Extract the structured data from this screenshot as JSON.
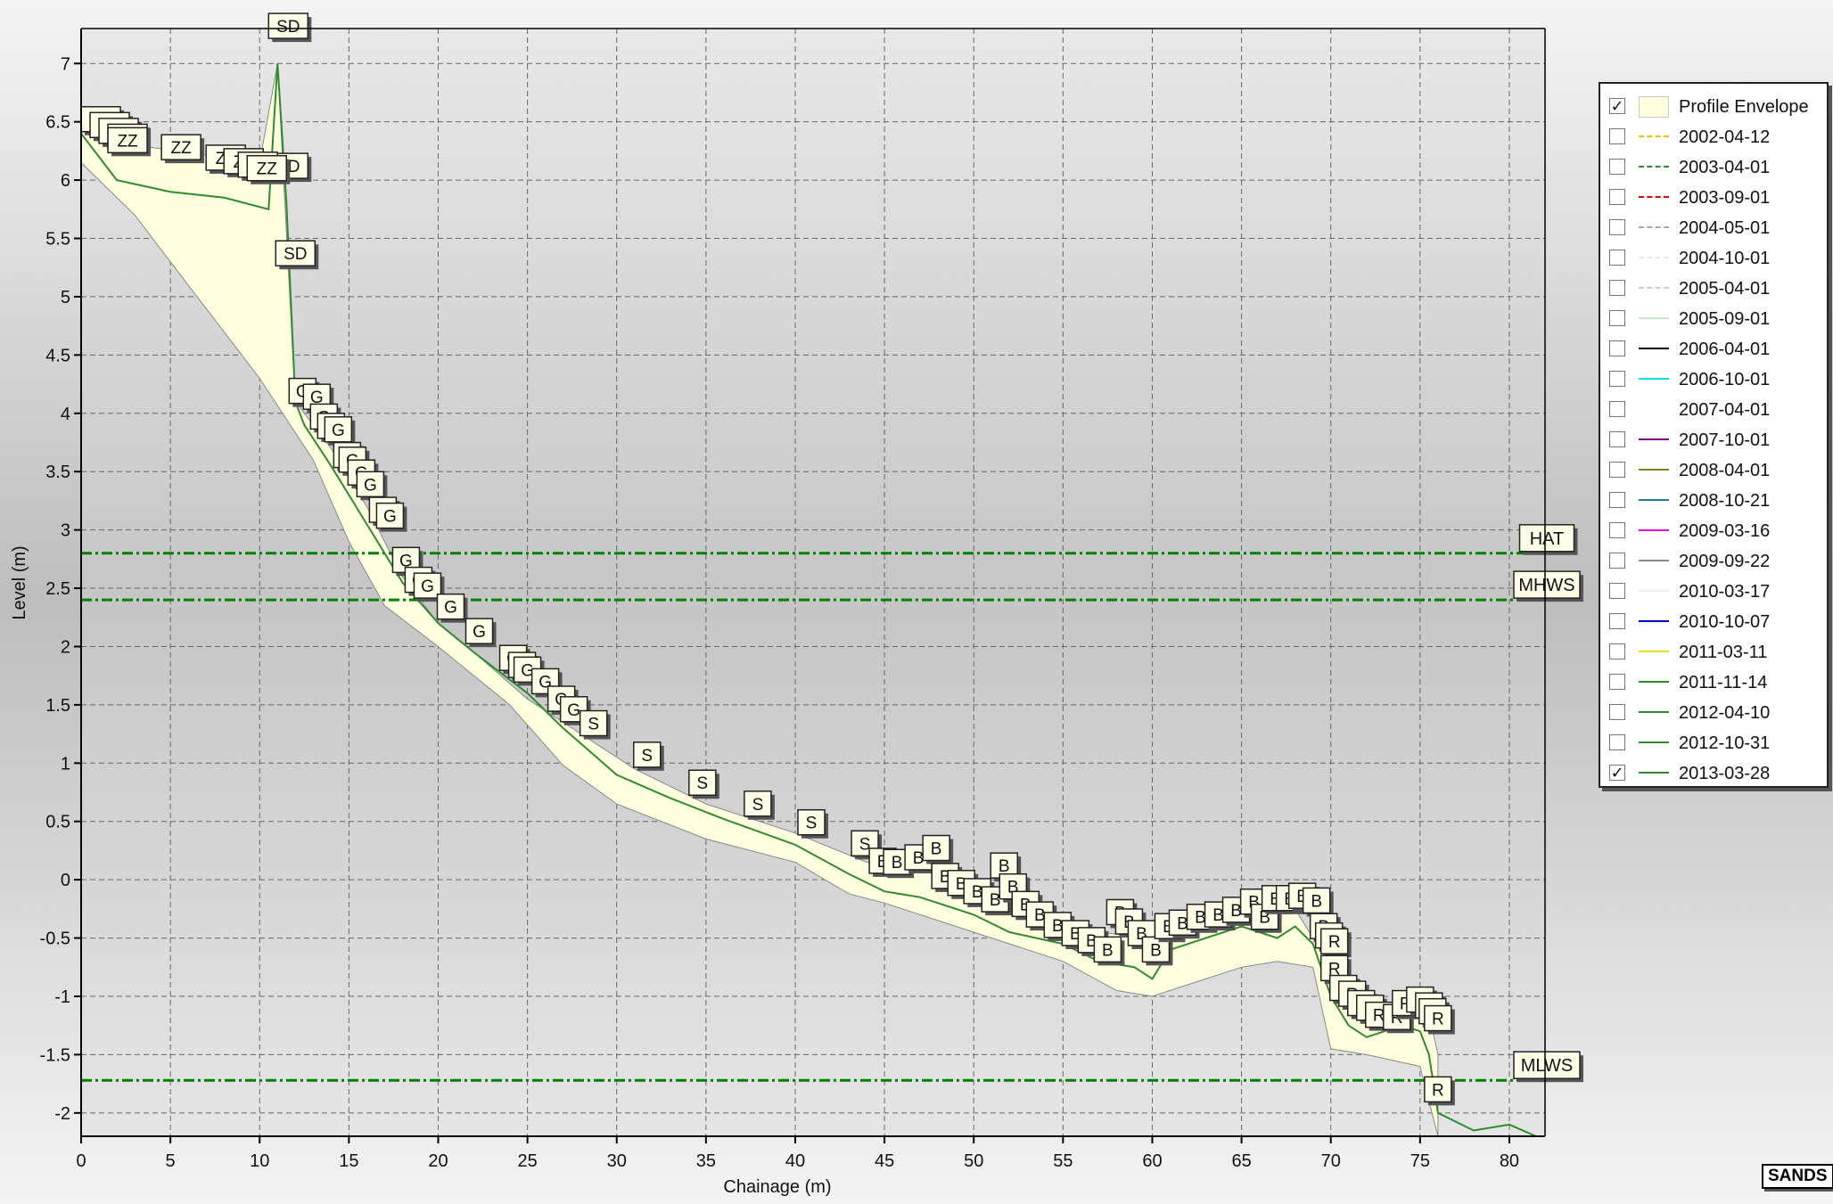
{
  "chart_data": {
    "type": "line",
    "xlabel": "Chainage (m)",
    "ylabel": "Level (m)",
    "xlim": [
      0,
      82
    ],
    "ylim": [
      -2.2,
      7.3
    ],
    "xticks": [
      0,
      5,
      10,
      15,
      20,
      25,
      30,
      35,
      40,
      45,
      50,
      55,
      60,
      65,
      70,
      75,
      80
    ],
    "yticks": [
      -2,
      -1.5,
      -1,
      -0.5,
      0,
      0.5,
      1,
      1.5,
      2,
      2.5,
      3,
      3.5,
      4,
      4.5,
      5,
      5.5,
      6,
      6.5,
      7
    ],
    "ytick_labels": [
      "-2",
      "-1.5",
      "-1",
      "-0.5",
      "0",
      "0.5",
      "1",
      "1.5",
      "2",
      "2.5",
      "3",
      "3.5",
      "4",
      "4.5",
      "5",
      "5.5",
      "6",
      "6.5",
      "7"
    ],
    "grid": true,
    "legend_position": "right",
    "envelope": {
      "name": "Profile Envelope",
      "upper": [
        [
          0,
          6.45
        ],
        [
          3,
          6.3
        ],
        [
          10,
          6.15
        ],
        [
          11,
          7.0
        ],
        [
          12,
          4.1
        ],
        [
          14,
          3.7
        ],
        [
          16,
          3.2
        ],
        [
          18,
          2.6
        ],
        [
          20,
          2.2
        ],
        [
          22,
          1.95
        ],
        [
          25,
          1.55
        ],
        [
          28,
          1.25
        ],
        [
          31,
          0.95
        ],
        [
          35,
          0.65
        ],
        [
          40,
          0.4
        ],
        [
          44,
          0.15
        ],
        [
          48,
          0.05
        ],
        [
          51,
          -0.05
        ],
        [
          54,
          -0.4
        ],
        [
          57,
          -0.45
        ],
        [
          60,
          -0.5
        ],
        [
          63,
          -0.4
        ],
        [
          66,
          -0.25
        ],
        [
          68,
          -0.25
        ],
        [
          70,
          -0.75
        ],
        [
          72,
          -1.15
        ],
        [
          74,
          -1.1
        ],
        [
          75.5,
          -1.15
        ],
        [
          76,
          -1.5
        ]
      ],
      "lower": [
        [
          76,
          -2.2
        ],
        [
          75,
          -1.6
        ],
        [
          73.5,
          -1.55
        ],
        [
          72,
          -1.5
        ],
        [
          70,
          -1.45
        ],
        [
          69,
          -0.75
        ],
        [
          67,
          -0.7
        ],
        [
          65,
          -0.75
        ],
        [
          63,
          -0.85
        ],
        [
          61,
          -0.95
        ],
        [
          60,
          -1.0
        ],
        [
          58,
          -0.95
        ],
        [
          55,
          -0.7
        ],
        [
          50,
          -0.45
        ],
        [
          45,
          -0.2
        ],
        [
          43,
          -0.12
        ],
        [
          40,
          0.15
        ],
        [
          35,
          0.35
        ],
        [
          30,
          0.65
        ],
        [
          27,
          0.98
        ],
        [
          24,
          1.5
        ],
        [
          20,
          2.0
        ],
        [
          17,
          2.35
        ],
        [
          15,
          2.9
        ],
        [
          13,
          3.6
        ],
        [
          10,
          4.3
        ],
        [
          6,
          5.1
        ],
        [
          3,
          5.7
        ],
        [
          0,
          6.15
        ]
      ]
    },
    "series": [
      {
        "name": "2013-03-28",
        "color": "#2e8b2e",
        "x": [
          0,
          2,
          5,
          8,
          10.5,
          11,
          11.5,
          12,
          12.5,
          14,
          16,
          18,
          20,
          22,
          25,
          27,
          30,
          33,
          36,
          40,
          43,
          45,
          47,
          50,
          52,
          55,
          57,
          59,
          60,
          61,
          63,
          65,
          66,
          67,
          68,
          69,
          70,
          71,
          72,
          73,
          74,
          75,
          75.5,
          76,
          78,
          80,
          81.5
        ],
        "y": [
          6.4,
          6.0,
          5.9,
          5.85,
          5.75,
          7.0,
          5.8,
          4.1,
          3.9,
          3.55,
          3.05,
          2.55,
          2.2,
          1.95,
          1.6,
          1.3,
          0.9,
          0.7,
          0.52,
          0.3,
          0.05,
          -0.1,
          -0.15,
          -0.3,
          -0.45,
          -0.55,
          -0.7,
          -0.75,
          -0.85,
          -0.6,
          -0.5,
          -0.4,
          -0.45,
          -0.5,
          -0.4,
          -0.55,
          -1.0,
          -1.25,
          -1.35,
          -1.3,
          -1.25,
          -1.3,
          -1.5,
          -2.0,
          -2.15,
          -2.1,
          -2.2
        ]
      }
    ],
    "reference_lines": [
      {
        "name": "HAT",
        "y": 2.8
      },
      {
        "name": "MHWS",
        "y": 2.4
      },
      {
        "name": "MLWS",
        "y": -1.72
      }
    ],
    "annotations": [
      {
        "text": "SD",
        "x": 11.0,
        "y": 7.2
      },
      {
        "text": "SD",
        "x": 11.0,
        "y": 6.0
      },
      {
        "text": "SD",
        "x": 11.4,
        "y": 5.25
      },
      {
        "text": "ZZ",
        "x": 0.5,
        "y": 6.4
      },
      {
        "text": "ZZ",
        "x": 1.0,
        "y": 6.35
      },
      {
        "text": "ZZ",
        "x": 1.5,
        "y": 6.3
      },
      {
        "text": "ZZ",
        "x": 2.0,
        "y": 6.25
      },
      {
        "text": "ZZ",
        "x": 2.0,
        "y": 6.22
      },
      {
        "text": "ZZ",
        "x": 5.0,
        "y": 6.16
      },
      {
        "text": "ZZ",
        "x": 7.5,
        "y": 6.07
      },
      {
        "text": "ZZ",
        "x": 8.5,
        "y": 6.04
      },
      {
        "text": "ZZ",
        "x": 9.3,
        "y": 6.01
      },
      {
        "text": "ZZ",
        "x": 9.8,
        "y": 5.98
      },
      {
        "text": "G",
        "x": 11.8,
        "y": 4.07
      },
      {
        "text": "G",
        "x": 12.6,
        "y": 4.02
      },
      {
        "text": "G",
        "x": 13.0,
        "y": 3.85
      },
      {
        "text": "G",
        "x": 13.4,
        "y": 3.77
      },
      {
        "text": "G",
        "x": 13.8,
        "y": 3.74
      },
      {
        "text": "G",
        "x": 14.3,
        "y": 3.52
      },
      {
        "text": "G",
        "x": 14.6,
        "y": 3.48
      },
      {
        "text": "G",
        "x": 15.1,
        "y": 3.37
      },
      {
        "text": "G",
        "x": 15.6,
        "y": 3.27
      },
      {
        "text": "G",
        "x": 16.3,
        "y": 3.05
      },
      {
        "text": "G",
        "x": 16.7,
        "y": 3.0
      },
      {
        "text": "G",
        "x": 17.6,
        "y": 2.62
      },
      {
        "text": "G",
        "x": 18.3,
        "y": 2.45
      },
      {
        "text": "G",
        "x": 18.8,
        "y": 2.4
      },
      {
        "text": "G",
        "x": 20.1,
        "y": 2.22
      },
      {
        "text": "G",
        "x": 21.7,
        "y": 2.01
      },
      {
        "text": "G",
        "x": 23.6,
        "y": 1.78
      },
      {
        "text": "G",
        "x": 24.1,
        "y": 1.72
      },
      {
        "text": "G",
        "x": 24.4,
        "y": 1.68
      },
      {
        "text": "G",
        "x": 25.4,
        "y": 1.58
      },
      {
        "text": "G",
        "x": 26.3,
        "y": 1.43
      },
      {
        "text": "G",
        "x": 27.0,
        "y": 1.34
      },
      {
        "text": "S",
        "x": 28.1,
        "y": 1.22
      },
      {
        "text": "S",
        "x": 31.1,
        "y": 0.95
      },
      {
        "text": "S",
        "x": 34.2,
        "y": 0.71
      },
      {
        "text": "S",
        "x": 37.3,
        "y": 0.53
      },
      {
        "text": "S",
        "x": 40.3,
        "y": 0.37
      },
      {
        "text": "S",
        "x": 43.3,
        "y": 0.19
      },
      {
        "text": "B",
        "x": 44.3,
        "y": 0.04
      },
      {
        "text": "B",
        "x": 45.1,
        "y": 0.03
      },
      {
        "text": "B",
        "x": 46.3,
        "y": 0.07
      },
      {
        "text": "B",
        "x": 47.3,
        "y": 0.15
      },
      {
        "text": "B",
        "x": 47.8,
        "y": -0.09
      },
      {
        "text": "B",
        "x": 48.7,
        "y": -0.15
      },
      {
        "text": "B",
        "x": 49.6,
        "y": -0.22
      },
      {
        "text": "B",
        "x": 50.6,
        "y": -0.29
      },
      {
        "text": "B",
        "x": 51.1,
        "y": 0.0
      },
      {
        "text": "B",
        "x": 51.6,
        "y": -0.18
      },
      {
        "text": "B",
        "x": 52.3,
        "y": -0.33
      },
      {
        "text": "B",
        "x": 53.1,
        "y": -0.42
      },
      {
        "text": "B",
        "x": 54.1,
        "y": -0.51
      },
      {
        "text": "B",
        "x": 55.1,
        "y": -0.58
      },
      {
        "text": "B",
        "x": 56.0,
        "y": -0.64
      },
      {
        "text": "B",
        "x": 56.9,
        "y": -0.72
      },
      {
        "text": "B",
        "x": 57.6,
        "y": -0.4
      },
      {
        "text": "B",
        "x": 58.1,
        "y": -0.48
      },
      {
        "text": "B",
        "x": 58.8,
        "y": -0.58
      },
      {
        "text": "B",
        "x": 59.6,
        "y": -0.72
      },
      {
        "text": "B",
        "x": 60.3,
        "y": -0.52
      },
      {
        "text": "B",
        "x": 61.1,
        "y": -0.49
      },
      {
        "text": "B",
        "x": 62.1,
        "y": -0.44
      },
      {
        "text": "B",
        "x": 63.1,
        "y": -0.42
      },
      {
        "text": "B",
        "x": 64.1,
        "y": -0.38
      },
      {
        "text": "B",
        "x": 65.1,
        "y": -0.31
      },
      {
        "text": "B",
        "x": 65.7,
        "y": -0.44
      },
      {
        "text": "B",
        "x": 66.3,
        "y": -0.28
      },
      {
        "text": "B",
        "x": 67.1,
        "y": -0.28
      },
      {
        "text": "B",
        "x": 67.8,
        "y": -0.26
      },
      {
        "text": "B",
        "x": 68.6,
        "y": -0.3
      },
      {
        "text": "B",
        "x": 69.0,
        "y": -0.52
      },
      {
        "text": "R",
        "x": 69.3,
        "y": -0.6
      },
      {
        "text": "R",
        "x": 69.6,
        "y": -0.65
      },
      {
        "text": "R",
        "x": 69.6,
        "y": -0.88
      },
      {
        "text": "R",
        "x": 70.1,
        "y": -1.05
      },
      {
        "text": "R",
        "x": 70.6,
        "y": -1.1
      },
      {
        "text": "R",
        "x": 71.1,
        "y": -1.18
      },
      {
        "text": "R",
        "x": 71.6,
        "y": -1.22
      },
      {
        "text": "R",
        "x": 72.1,
        "y": -1.28
      },
      {
        "text": "R",
        "x": 73.1,
        "y": -1.3
      },
      {
        "text": "R",
        "x": 73.6,
        "y": -1.18
      },
      {
        "text": "R",
        "x": 74.4,
        "y": -1.15
      },
      {
        "text": "R",
        "x": 74.9,
        "y": -1.2
      },
      {
        "text": "R",
        "x": 75.1,
        "y": -1.25
      },
      {
        "text": "R",
        "x": 75.4,
        "y": -1.31
      },
      {
        "text": "R",
        "x": 75.4,
        "y": -1.92
      }
    ],
    "legend": [
      {
        "label": "Profile Envelope",
        "checked": true,
        "style": "box",
        "color": "#ffffe0"
      },
      {
        "label": "2002-04-12",
        "checked": false,
        "style": "dashed",
        "color": "#e6c200"
      },
      {
        "label": "2003-04-01",
        "checked": false,
        "style": "dashed",
        "color": "#2e8b2e"
      },
      {
        "label": "2003-09-01",
        "checked": false,
        "style": "dashed",
        "color": "#e00000"
      },
      {
        "label": "2004-05-01",
        "checked": false,
        "style": "dashed",
        "color": "#a8a8a8"
      },
      {
        "label": "2004-10-01",
        "checked": false,
        "style": "dashed",
        "color": "#e8e8e8"
      },
      {
        "label": "2005-04-01",
        "checked": false,
        "style": "dashed",
        "color": "#b8d0f0"
      },
      {
        "label": "2005-09-01",
        "checked": false,
        "style": "solid",
        "color": "#cfe8cf"
      },
      {
        "label": "2006-04-01",
        "checked": false,
        "style": "solid",
        "color": "#000000"
      },
      {
        "label": "2006-10-01",
        "checked": false,
        "style": "solid",
        "color": "#00e0e0"
      },
      {
        "label": "2007-04-01",
        "checked": false,
        "style": "solid",
        "color": "#ffffff"
      },
      {
        "label": "2007-10-01",
        "checked": false,
        "style": "solid",
        "color": "#800080"
      },
      {
        "label": "2008-04-01",
        "checked": false,
        "style": "solid",
        "color": "#8b7d1a"
      },
      {
        "label": "2008-10-21",
        "checked": false,
        "style": "solid",
        "color": "#1a7f8f"
      },
      {
        "label": "2009-03-16",
        "checked": false,
        "style": "solid",
        "color": "#e000e0"
      },
      {
        "label": "2009-09-22",
        "checked": false,
        "style": "solid",
        "color": "#8a8a8a"
      },
      {
        "label": "2010-03-17",
        "checked": false,
        "style": "solid",
        "color": "#f0f0f0"
      },
      {
        "label": "2010-10-07",
        "checked": false,
        "style": "solid",
        "color": "#0000c0"
      },
      {
        "label": "2011-03-11",
        "checked": false,
        "style": "solid",
        "color": "#f0e000"
      },
      {
        "label": "2011-11-14",
        "checked": false,
        "style": "solid",
        "color": "#2e8b2e"
      },
      {
        "label": "2012-04-10",
        "checked": false,
        "style": "solid",
        "color": "#2e8b2e"
      },
      {
        "label": "2012-10-31",
        "checked": false,
        "style": "solid",
        "color": "#2e8b2e"
      },
      {
        "label": "2013-03-28",
        "checked": true,
        "style": "solid",
        "color": "#2e8b2e"
      }
    ]
  },
  "brand": "SANDS",
  "colors": {
    "envelope_fill": "#ffffe0",
    "profile_line": "#2e8b2e",
    "reference_line": "#008000",
    "grid": "#666666"
  }
}
